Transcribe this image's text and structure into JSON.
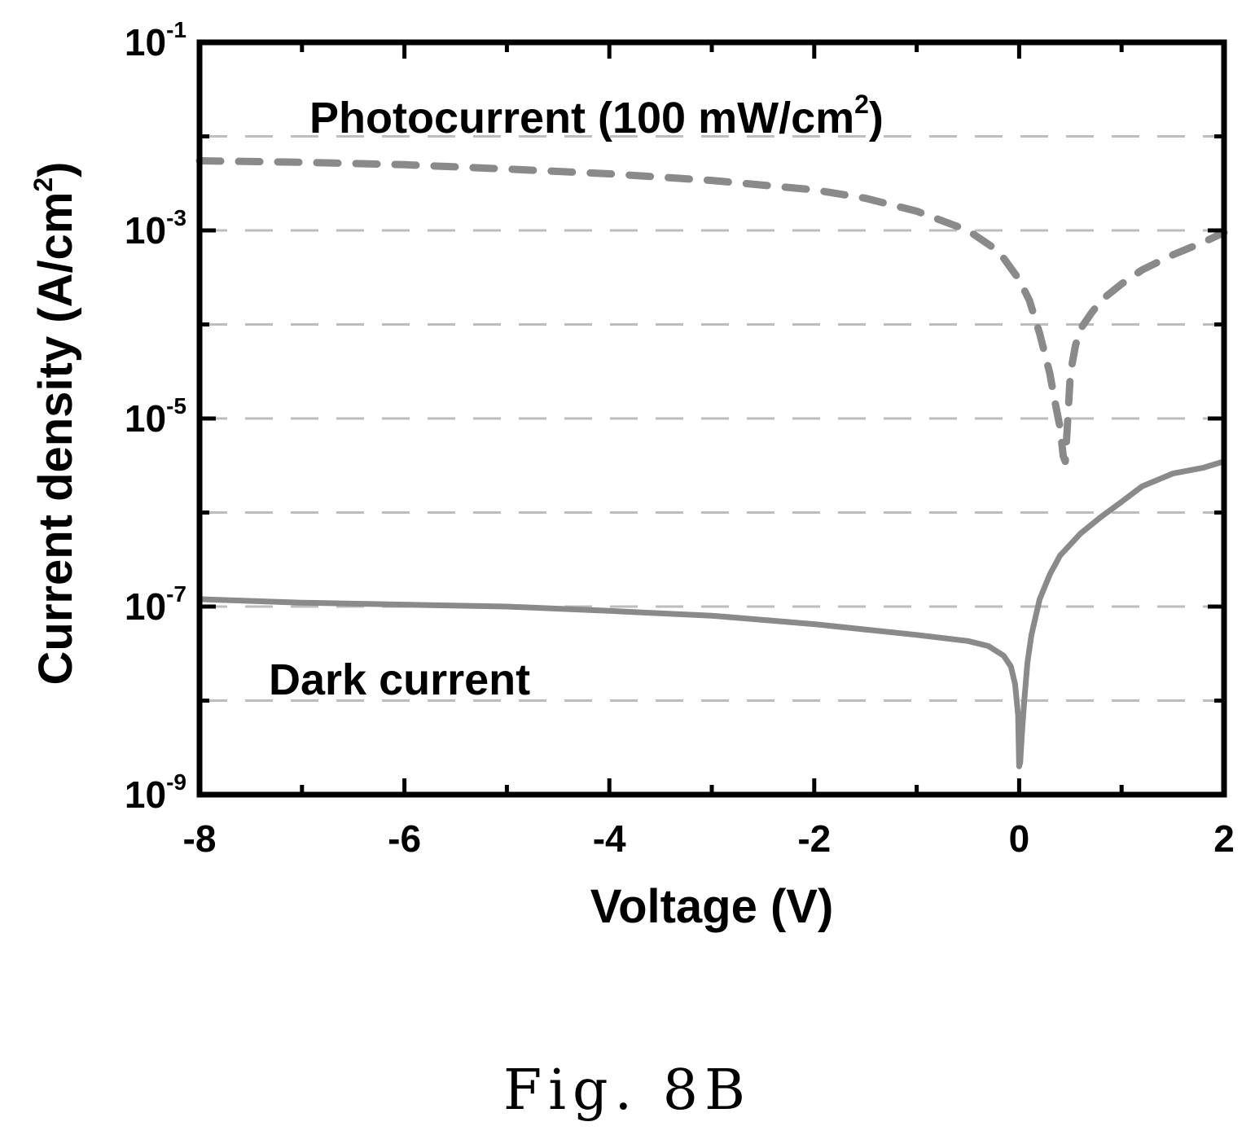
{
  "chart_data": {
    "type": "line",
    "xlabel": "Voltage (V)",
    "ylabel": "Current density (A/cm",
    "ylabel_sup": "2",
    "ylabel_close": ")",
    "yscale": "log",
    "xlim": [
      -8,
      2
    ],
    "ylim": [
      1e-09,
      0.1
    ],
    "grid": "horizontal dashed",
    "xticks": [
      "-8",
      "-6",
      "-4",
      "-2",
      "0",
      "2"
    ],
    "yticks": [
      {
        "base": "10",
        "exp": "-1",
        "value": 0.1
      },
      {
        "base": "10",
        "exp": "-3",
        "value": 0.001
      },
      {
        "base": "10",
        "exp": "-5",
        "value": 1e-05
      },
      {
        "base": "10",
        "exp": "-7",
        "value": 1e-07
      },
      {
        "base": "10",
        "exp": "-9",
        "value": 1e-09
      }
    ],
    "annotations": {
      "photo_main": "Photocurrent (100 mW/cm",
      "photo_sup": "2",
      "photo_close": ")",
      "dark": "Dark current"
    },
    "series": [
      {
        "style": "dashed",
        "color": "#8a8a8a",
        "x": [
          -8,
          -7,
          -6,
          -5,
          -4,
          -3,
          -2,
          -1.5,
          -1,
          -0.5,
          -0.2,
          0,
          0.1,
          0.2,
          0.3,
          0.35,
          0.4,
          0.43,
          0.45,
          0.47,
          0.5,
          0.55,
          0.6,
          0.7,
          0.8,
          1.0,
          1.2,
          1.5,
          1.8,
          2.0
        ],
        "y": [
          0.0055,
          0.0053,
          0.005,
          0.0045,
          0.004,
          0.0034,
          0.0027,
          0.0022,
          0.0016,
          0.001,
          0.0006,
          0.0003,
          0.00018,
          8e-05,
          3e-05,
          1.5e-05,
          8e-06,
          4e-06,
          3.5e-06,
          8e-06,
          3e-05,
          6e-05,
          9e-05,
          0.00013,
          0.00018,
          0.00027,
          0.00038,
          0.00055,
          0.00075,
          0.00095
        ]
      },
      {
        "style": "solid",
        "color": "#8a8a8a",
        "x": [
          -8,
          -7,
          -6,
          -5,
          -4,
          -3,
          -2,
          -1,
          -0.5,
          -0.3,
          -0.15,
          -0.08,
          -0.04,
          -0.01,
          0.0,
          0.01,
          0.03,
          0.05,
          0.08,
          0.12,
          0.2,
          0.3,
          0.4,
          0.6,
          0.8,
          1.0,
          1.2,
          1.5,
          1.8,
          2.0
        ],
        "y": [
          1.2e-07,
          1.1e-07,
          1.05e-07,
          1e-07,
          9e-08,
          8e-08,
          6.5e-08,
          5e-08,
          4.3e-08,
          3.8e-08,
          3e-08,
          2.3e-08,
          1.5e-08,
          7e-09,
          2e-09,
          2.2e-09,
          5e-09,
          1e-08,
          2.5e-08,
          5e-08,
          1.2e-07,
          2.2e-07,
          3.5e-07,
          6e-07,
          9e-07,
          1.3e-06,
          1.9e-06,
          2.6e-06,
          3e-06,
          3.5e-06
        ]
      }
    ]
  },
  "caption": "Fig. 8B"
}
